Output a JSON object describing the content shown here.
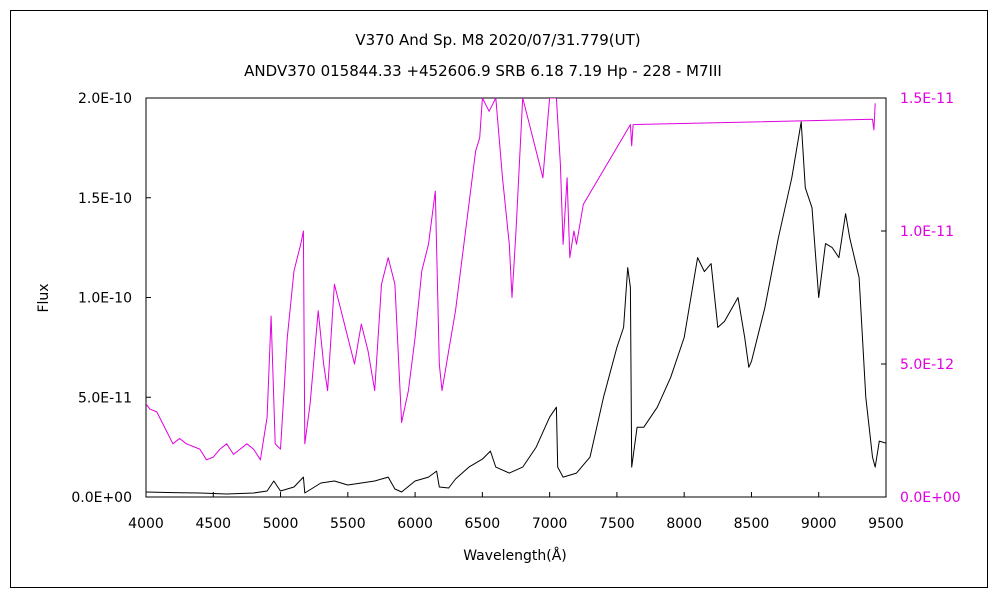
{
  "chart_data": {
    "type": "line",
    "title": "V370 And    Sp. M8    2020/07/31.779(UT)",
    "subtitle": "ANDV370 015844.33 +452606.9 SRB 6.18 7.19 Hp - 228 - M7III",
    "xlabel": "Wavelength(Å)",
    "ylabel": "Flux",
    "xlim": [
      4000,
      9500
    ],
    "ylim_left": [
      0,
      2e-10
    ],
    "ylim_right": [
      0,
      1.5e-11
    ],
    "x_ticks": [
      "4000",
      "4500",
      "5000",
      "5500",
      "6000",
      "6500",
      "7000",
      "7500",
      "8000",
      "8500",
      "9000",
      "9500"
    ],
    "y_ticks_left": [
      "0.0E+00",
      "5.0E-11",
      "1.0E-10",
      "1.5E-10",
      "2.0E-10"
    ],
    "y_ticks_right": [
      "0.0E+00",
      "5.0E-12",
      "1.0E-11",
      "1.5E-11"
    ],
    "grid": false,
    "colors": {
      "black_series": "#000000",
      "magenta_series": "#e000e0",
      "right_axis": "#e000e0"
    },
    "series": [
      {
        "axis": "left",
        "color": "#000000",
        "x": [
          4000,
          4200,
          4400,
          4600,
          4800,
          4900,
          4950,
          5000,
          5100,
          5170,
          5180,
          5300,
          5400,
          5500,
          5600,
          5700,
          5800,
          5850,
          5900,
          6000,
          6100,
          6160,
          6180,
          6250,
          6300,
          6400,
          6500,
          6560,
          6600,
          6700,
          6800,
          6900,
          7000,
          7050,
          7060,
          7100,
          7200,
          7300,
          7400,
          7500,
          7550,
          7580,
          7600,
          7610,
          7650,
          7700,
          7800,
          7900,
          8000,
          8100,
          8150,
          8200,
          8250,
          8300,
          8400,
          8450,
          8480,
          8500,
          8600,
          8700,
          8800,
          8870,
          8900,
          8950,
          9000,
          9050,
          9100,
          9150,
          9200,
          9230,
          9300,
          9350,
          9400,
          9420,
          9450,
          9500
        ],
        "y": [
          2.5e-12,
          2.2e-12,
          2e-12,
          1.5e-12,
          2e-12,
          3e-12,
          8e-12,
          3e-12,
          5e-12,
          1e-11,
          2e-12,
          7e-12,
          8e-12,
          6e-12,
          7e-12,
          8e-12,
          1e-11,
          4e-12,
          2.5e-12,
          8e-12,
          1e-11,
          1.3e-11,
          5e-12,
          4.5e-12,
          9e-12,
          1.5e-11,
          1.9e-11,
          2.3e-11,
          1.5e-11,
          1.2e-11,
          1.5e-11,
          2.5e-11,
          4e-11,
          4.5e-11,
          1.5e-11,
          1e-11,
          1.2e-11,
          2e-11,
          5e-11,
          7.5e-11,
          8.5e-11,
          1.15e-10,
          1.05e-10,
          1.5e-11,
          3.5e-11,
          3.5e-11,
          4.5e-11,
          6e-11,
          8e-11,
          1.2e-10,
          1.13e-10,
          1.17e-10,
          8.5e-11,
          8.8e-11,
          1e-10,
          8e-11,
          6.5e-11,
          6.8e-11,
          9.5e-11,
          1.3e-10,
          1.6e-10,
          1.88e-10,
          1.55e-10,
          1.45e-10,
          1e-10,
          1.27e-10,
          1.25e-10,
          1.2e-10,
          1.42e-10,
          1.3e-10,
          1.1e-10,
          5e-11,
          2e-11,
          1.5e-11,
          2.8e-11,
          2.7e-11
        ]
      },
      {
        "axis": "right",
        "color": "#e000e0",
        "x": [
          4000,
          4030,
          4080,
          4150,
          4200,
          4250,
          4300,
          4400,
          4450,
          4500,
          4550,
          4600,
          4650,
          4700,
          4750,
          4800,
          4850,
          4900,
          4930,
          4960,
          5000,
          5050,
          5100,
          5150,
          5170,
          5180,
          5220,
          5280,
          5320,
          5350,
          5400,
          5450,
          5500,
          5550,
          5600,
          5650,
          5700,
          5750,
          5800,
          5850,
          5900,
          5950,
          6000,
          6050,
          6100,
          6150,
          6180,
          6200,
          6250,
          6300,
          6350,
          6400,
          6450,
          6480,
          6500,
          6550,
          6600,
          6650,
          6700,
          6720,
          6750,
          6800,
          6850,
          6900,
          6950,
          7000,
          7050,
          7080,
          7100,
          7130,
          7150,
          7180,
          7200,
          7250,
          7600,
          7610,
          7620,
          9400,
          9410,
          9420
        ],
        "y": [
          3.5e-12,
          3.3e-12,
          3.2e-12,
          2.5e-12,
          2e-12,
          2.2e-12,
          2e-12,
          1.8e-12,
          1.4e-12,
          1.5e-12,
          1.8e-12,
          2e-12,
          1.6e-12,
          1.8e-12,
          2e-12,
          1.8e-12,
          1.4e-12,
          3e-12,
          6.8e-12,
          2e-12,
          1.8e-12,
          6e-12,
          8.5e-12,
          9.5e-12,
          1e-11,
          2e-12,
          3.5e-12,
          7e-12,
          5e-12,
          4e-12,
          8e-12,
          7e-12,
          6e-12,
          5e-12,
          6.5e-12,
          5.5e-12,
          4e-12,
          8e-12,
          9e-12,
          8e-12,
          2.8e-12,
          4e-12,
          6e-12,
          8.5e-12,
          9.5e-12,
          1.15e-11,
          5e-12,
          4e-12,
          5.5e-12,
          7e-12,
          9e-12,
          1.1e-11,
          1.3e-11,
          1.35e-11,
          1.5e-11,
          1.45e-11,
          1.5e-11,
          1.2e-11,
          9.5e-12,
          7.5e-12,
          1e-11,
          1.5e-11,
          1.4e-11,
          1.3e-11,
          1.2e-11,
          1.5e-11,
          1.5e-11,
          1.25e-11,
          9.5e-12,
          1.2e-11,
          9e-12,
          1e-11,
          9.5e-12,
          1.1e-11,
          1.4e-11,
          1.32e-11,
          1.4e-11,
          1.42e-11,
          1.38e-11,
          1.48e-11
        ]
      }
    ]
  }
}
